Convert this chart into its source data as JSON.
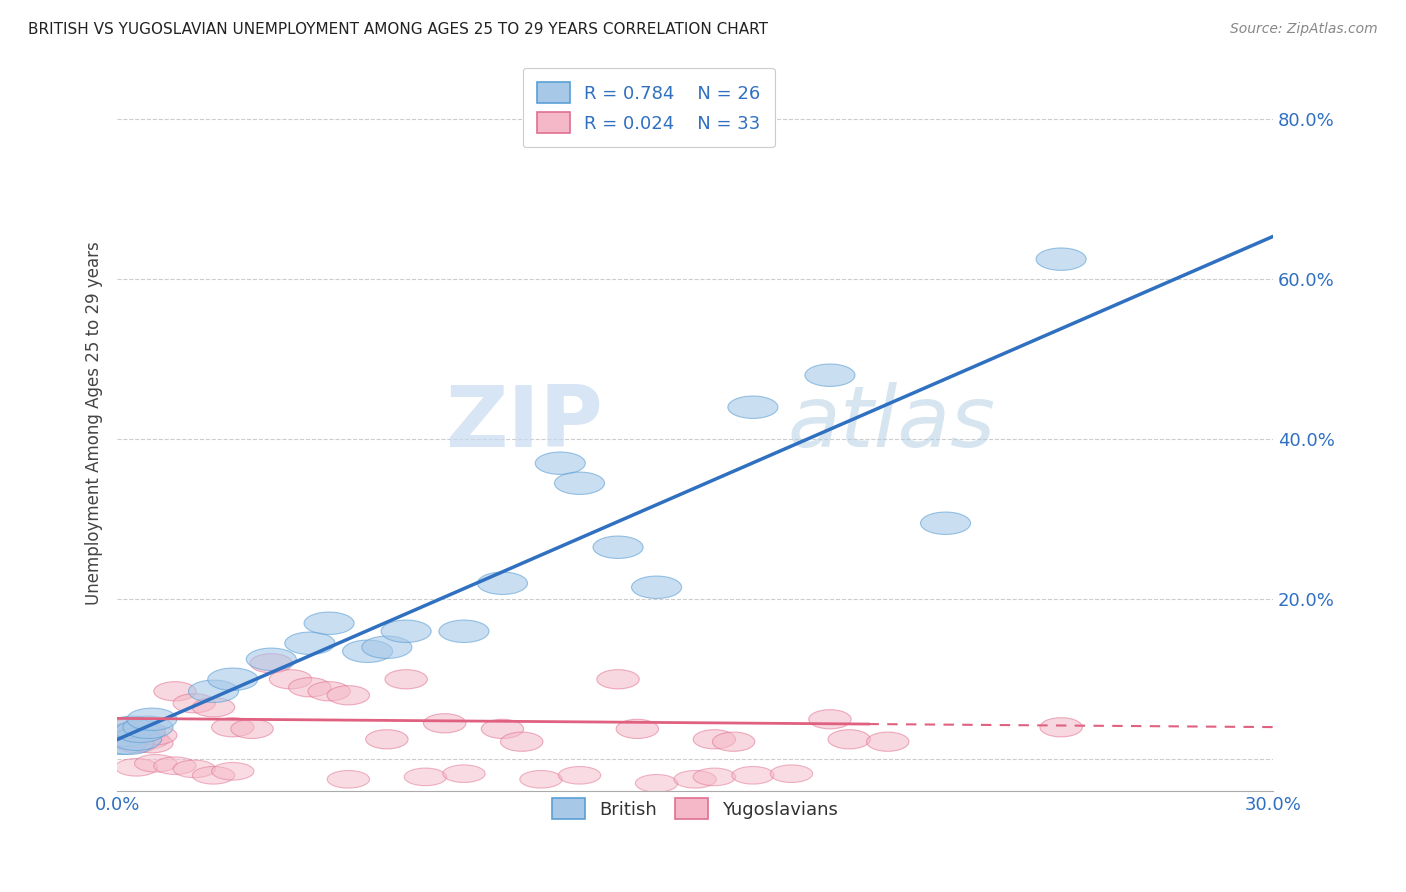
{
  "title": "BRITISH VS YUGOSLAVIAN UNEMPLOYMENT AMONG AGES 25 TO 29 YEARS CORRELATION CHART",
  "source": "Source: ZipAtlas.com",
  "ylabel": "Unemployment Among Ages 25 to 29 years",
  "xlim": [
    0.0,
    0.3
  ],
  "ylim": [
    -0.04,
    0.88
  ],
  "xticks": [
    0.0,
    0.05,
    0.1,
    0.15,
    0.2,
    0.25,
    0.3
  ],
  "xticklabels": [
    "0.0%",
    "",
    "",
    "",
    "",
    "",
    "30.0%"
  ],
  "yticks": [
    0.0,
    0.2,
    0.4,
    0.6,
    0.8
  ],
  "yticklabels": [
    "",
    "20.0%",
    "40.0%",
    "60.0%",
    "80.0%"
  ],
  "british_R": "0.784",
  "british_N": "26",
  "yugoslavian_R": "0.024",
  "yugoslavian_N": "33",
  "british_color": "#a8c8e8",
  "british_edge": "#5a9fd4",
  "yugoslavian_color": "#f4b8c8",
  "yugoslavian_edge": "#e07090",
  "british_line_color": "#3070c0",
  "yugoslavian_line_color": "#e06080",
  "grid_color": "#c8c8c8",
  "watermark_zip": "ZIP",
  "watermark_atlas": "atlas",
  "british_x": [
    0.001,
    0.002,
    0.003,
    0.004,
    0.005,
    0.006,
    0.008,
    0.009,
    0.025,
    0.03,
    0.04,
    0.05,
    0.055,
    0.065,
    0.07,
    0.075,
    0.09,
    0.1,
    0.115,
    0.12,
    0.13,
    0.14,
    0.165,
    0.185,
    0.215,
    0.245
  ],
  "british_y": [
    0.02,
    0.03,
    0.02,
    0.04,
    0.025,
    0.035,
    0.04,
    0.05,
    0.085,
    0.1,
    0.125,
    0.145,
    0.17,
    0.135,
    0.14,
    0.16,
    0.16,
    0.22,
    0.37,
    0.345,
    0.265,
    0.215,
    0.44,
    0.48,
    0.295,
    0.625
  ],
  "yugoslav_x": [
    0.001,
    0.002,
    0.003,
    0.004,
    0.005,
    0.006,
    0.007,
    0.008,
    0.009,
    0.01,
    0.015,
    0.02,
    0.025,
    0.03,
    0.035,
    0.04,
    0.045,
    0.05,
    0.055,
    0.06,
    0.07,
    0.075,
    0.085,
    0.1,
    0.105,
    0.13,
    0.135,
    0.155,
    0.16,
    0.185,
    0.19,
    0.2,
    0.245
  ],
  "yugoslav_y": [
    0.025,
    0.03,
    0.025,
    0.04,
    0.02,
    0.035,
    0.03,
    0.025,
    0.02,
    0.03,
    0.085,
    0.07,
    0.065,
    0.04,
    0.038,
    0.12,
    0.1,
    0.09,
    0.085,
    0.08,
    0.025,
    0.1,
    0.045,
    0.038,
    0.022,
    0.1,
    0.038,
    0.025,
    0.022,
    0.05,
    0.025,
    0.022,
    0.04
  ],
  "yugoslav_below_x": [
    0.005,
    0.01,
    0.015,
    0.02,
    0.025,
    0.03,
    0.06,
    0.08,
    0.09,
    0.11,
    0.12,
    0.14,
    0.15,
    0.155,
    0.165,
    0.175
  ],
  "yugoslav_below_y": [
    -0.01,
    -0.005,
    -0.008,
    -0.012,
    -0.02,
    -0.015,
    -0.025,
    -0.022,
    -0.018,
    -0.025,
    -0.02,
    -0.03,
    -0.025,
    -0.022,
    -0.02,
    -0.018
  ]
}
